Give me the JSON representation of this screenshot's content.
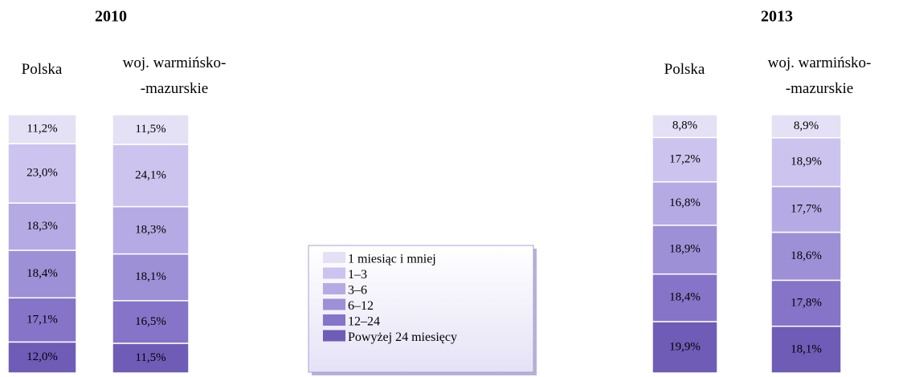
{
  "chart_data": {
    "type": "bar",
    "stacked": true,
    "ylim": [
      0,
      100
    ],
    "groups": [
      {
        "title": "2010"
      },
      {
        "title": "2013"
      }
    ],
    "categories": [
      "Polska",
      "woj. warmińsko-\n-mazurskie",
      "Polska",
      "woj. warmińsko-\n-mazurskie"
    ],
    "legend": "center",
    "series": [
      {
        "name": "1 miesiąc i mniej",
        "color": "#e4e0f5",
        "values": [
          11.2,
          11.5,
          8.8,
          8.9
        ],
        "value_labels": [
          "11,2%",
          "11,5%",
          "8,8%",
          "8,9%"
        ]
      },
      {
        "name": "1–3",
        "color": "#ccc4ee",
        "values": [
          23.0,
          24.1,
          17.2,
          18.9
        ],
        "value_labels": [
          "23,0%",
          "24,1%",
          "17,2%",
          "18,9%"
        ]
      },
      {
        "name": "3–6",
        "color": "#b6aae4",
        "values": [
          18.3,
          18.3,
          16.8,
          17.7
        ],
        "value_labels": [
          "18,3%",
          "18,3%",
          "16,8%",
          "17,7%"
        ]
      },
      {
        "name": "6–12",
        "color": "#9e90d6",
        "values": [
          18.4,
          18.1,
          18.9,
          18.6
        ],
        "value_labels": [
          "18,4%",
          "18,1%",
          "18,9%",
          "18,6%"
        ]
      },
      {
        "name": "12–24",
        "color": "#8574c8",
        "values": [
          17.1,
          16.5,
          18.4,
          17.8
        ],
        "value_labels": [
          "17,1%",
          "16,5%",
          "18,4%",
          "17,8%"
        ]
      },
      {
        "name": "Powyżej 24 miesięcy",
        "color": "#6f5cb7",
        "values": [
          12.0,
          11.5,
          19.9,
          18.1
        ],
        "value_labels": [
          "12,0%",
          "11,5%",
          "19,9%",
          "18,1%"
        ]
      }
    ]
  }
}
